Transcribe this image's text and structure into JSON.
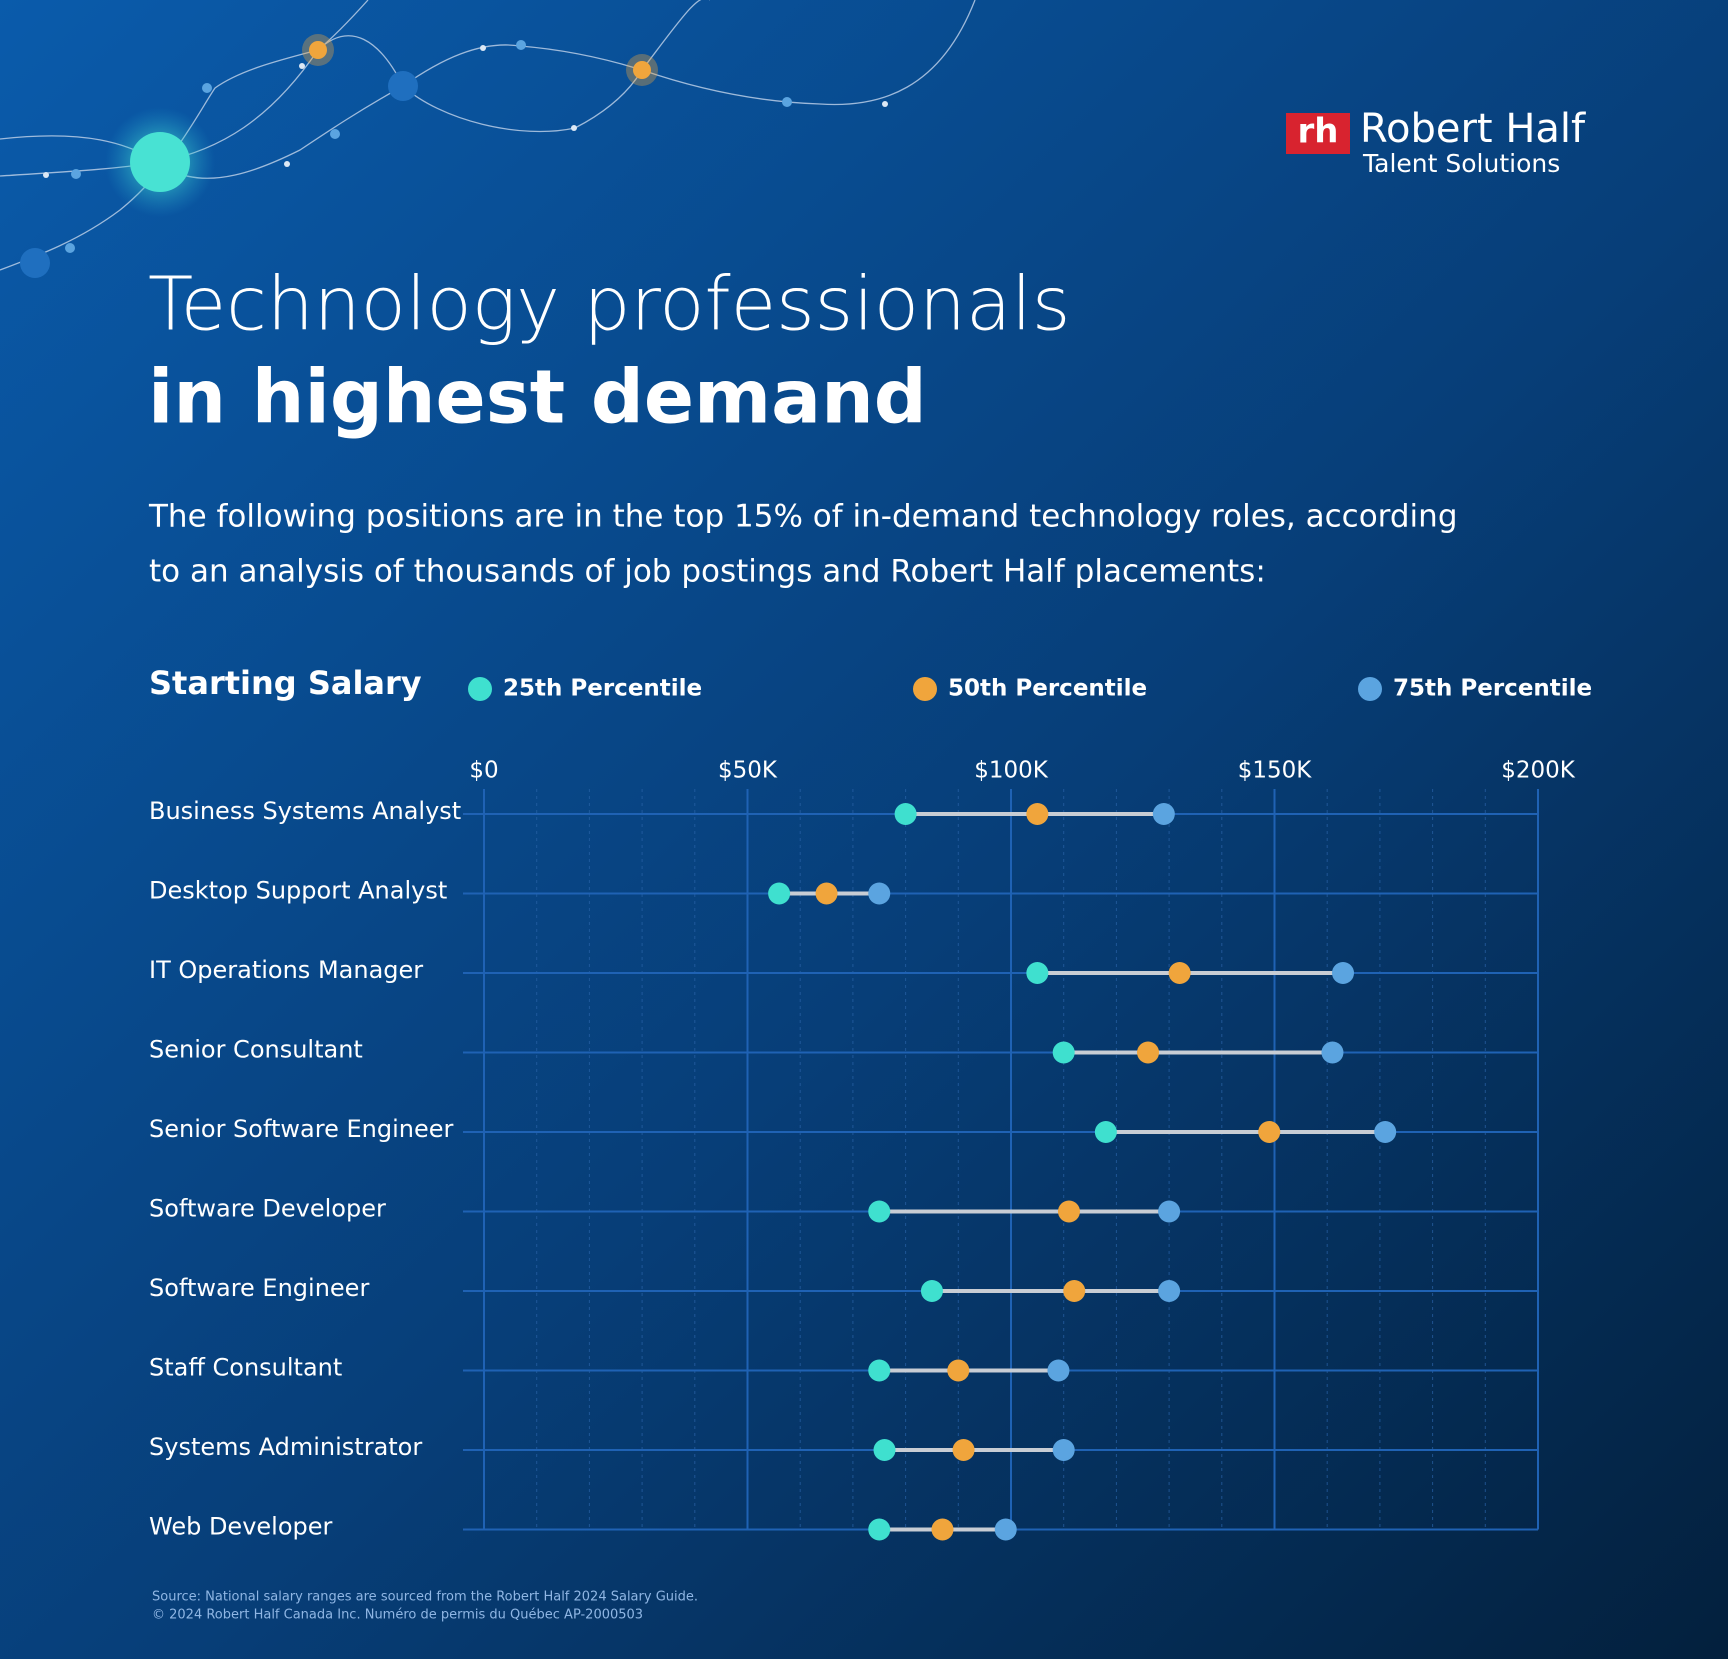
{
  "chart_data": {
    "type": "dumbbell",
    "logo": {
      "mark": "rh",
      "name": "Robert Half",
      "sub": "Talent Solutions"
    },
    "title": "Technology professionals",
    "title_bold": "in highest demand",
    "subtitle": [
      "The following positions are in the top 15% of in-demand technology roles, according",
      "to an analysis of thousands of job postings and Robert Half placements:"
    ],
    "legend_title": "Starting Salary",
    "categories": [
      "Business Systems Analyst",
      "Desktop Support Analyst",
      "IT Operations Manager",
      "Senior Consultant",
      "Senior Software Engineer",
      "Software Developer",
      "Software Engineer",
      "Staff Consultant",
      "Systems Administrator",
      "Web Developer"
    ],
    "series": [
      {
        "name": "25th Percentile",
        "color": "#3fe0cf",
        "values": [
          80000,
          56000,
          105000,
          110000,
          118000,
          75000,
          85000,
          75000,
          76000,
          75000
        ]
      },
      {
        "name": "50th Percentile",
        "color": "#f0a53c",
        "values": [
          105000,
          65000,
          132000,
          126000,
          149000,
          111000,
          112000,
          90000,
          91000,
          87000
        ]
      },
      {
        "name": "75th Percentile",
        "color": "#5ba4e0",
        "values": [
          129000,
          75000,
          163000,
          161000,
          171000,
          130000,
          130000,
          109000,
          110000,
          99000
        ]
      }
    ],
    "connector_color": "#c8cdd4",
    "xlim": [
      0,
      200000
    ],
    "xticks": [
      {
        "value": 0,
        "label": "$0"
      },
      {
        "value": 50000,
        "label": "$50K"
      },
      {
        "value": 100000,
        "label": "$100K"
      },
      {
        "value": 150000,
        "label": "$150K"
      },
      {
        "value": 200000,
        "label": "$200K"
      }
    ],
    "grid": true,
    "footnote": [
      "Source: National salary ranges are sourced from the Robert Half 2024 Salary Guide.",
      "© 2024 Robert Half Canada Inc. Numéro de permis du Québec AP-2000503"
    ]
  }
}
